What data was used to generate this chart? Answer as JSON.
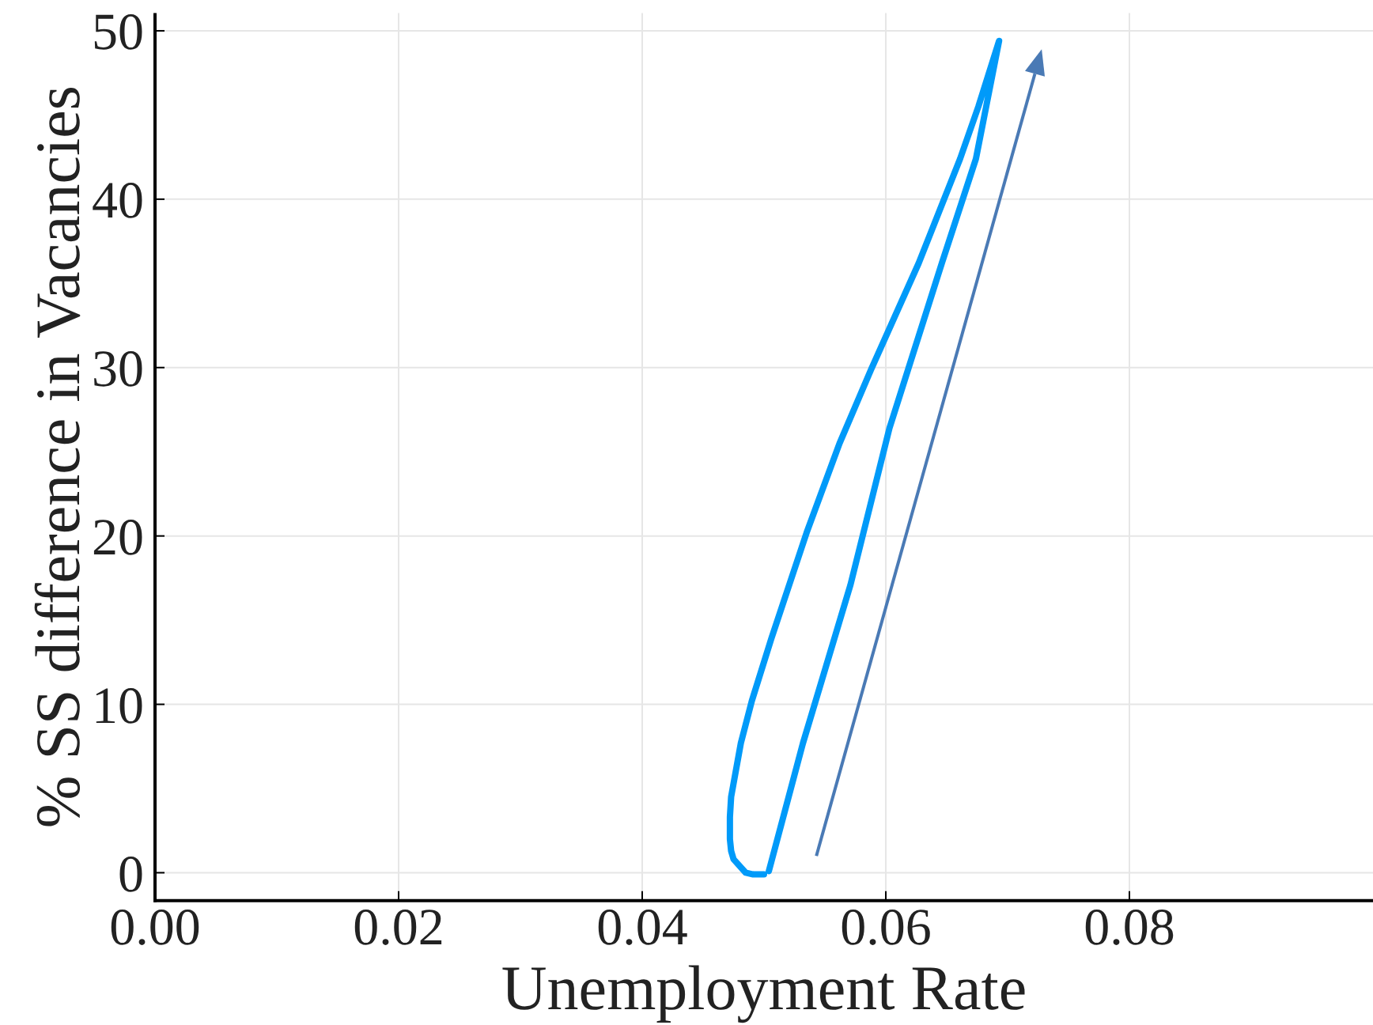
{
  "chart_data": {
    "type": "line",
    "xlabel": "Unemployment Rate",
    "ylabel": "% SS difference in Vacancies",
    "x": [
      0.0504,
      0.0532,
      0.0571,
      0.0603,
      0.0646,
      0.0674,
      0.0693,
      0.0676,
      0.0661,
      0.0627,
      0.0588,
      0.0562,
      0.0535,
      0.0506,
      0.049,
      0.0481,
      0.0473,
      0.0472,
      0.0472,
      0.0473,
      0.0475,
      0.0485,
      0.0491,
      0.05
    ],
    "series": [
      {
        "color": "#009af9",
        "values": [
          0.1,
          7.7,
          17.1,
          26.4,
          36.2,
          42.4,
          49.4,
          45.5,
          42.4,
          36.2,
          29.9,
          25.5,
          20.2,
          13.9,
          10.2,
          7.7,
          4.5,
          3.3,
          2.0,
          1.3,
          0.8,
          0.0,
          -0.1,
          -0.1
        ]
      }
    ],
    "xlim": [
      0,
      0.1
    ],
    "ylim": [
      -1.66,
      51.05
    ],
    "xticks": [
      {
        "value": 0,
        "label": "0.00"
      },
      0.02,
      0.04,
      0.06,
      0.08
    ],
    "yticks": [
      0,
      10,
      20,
      30,
      40,
      50
    ],
    "grid": true
  }
}
